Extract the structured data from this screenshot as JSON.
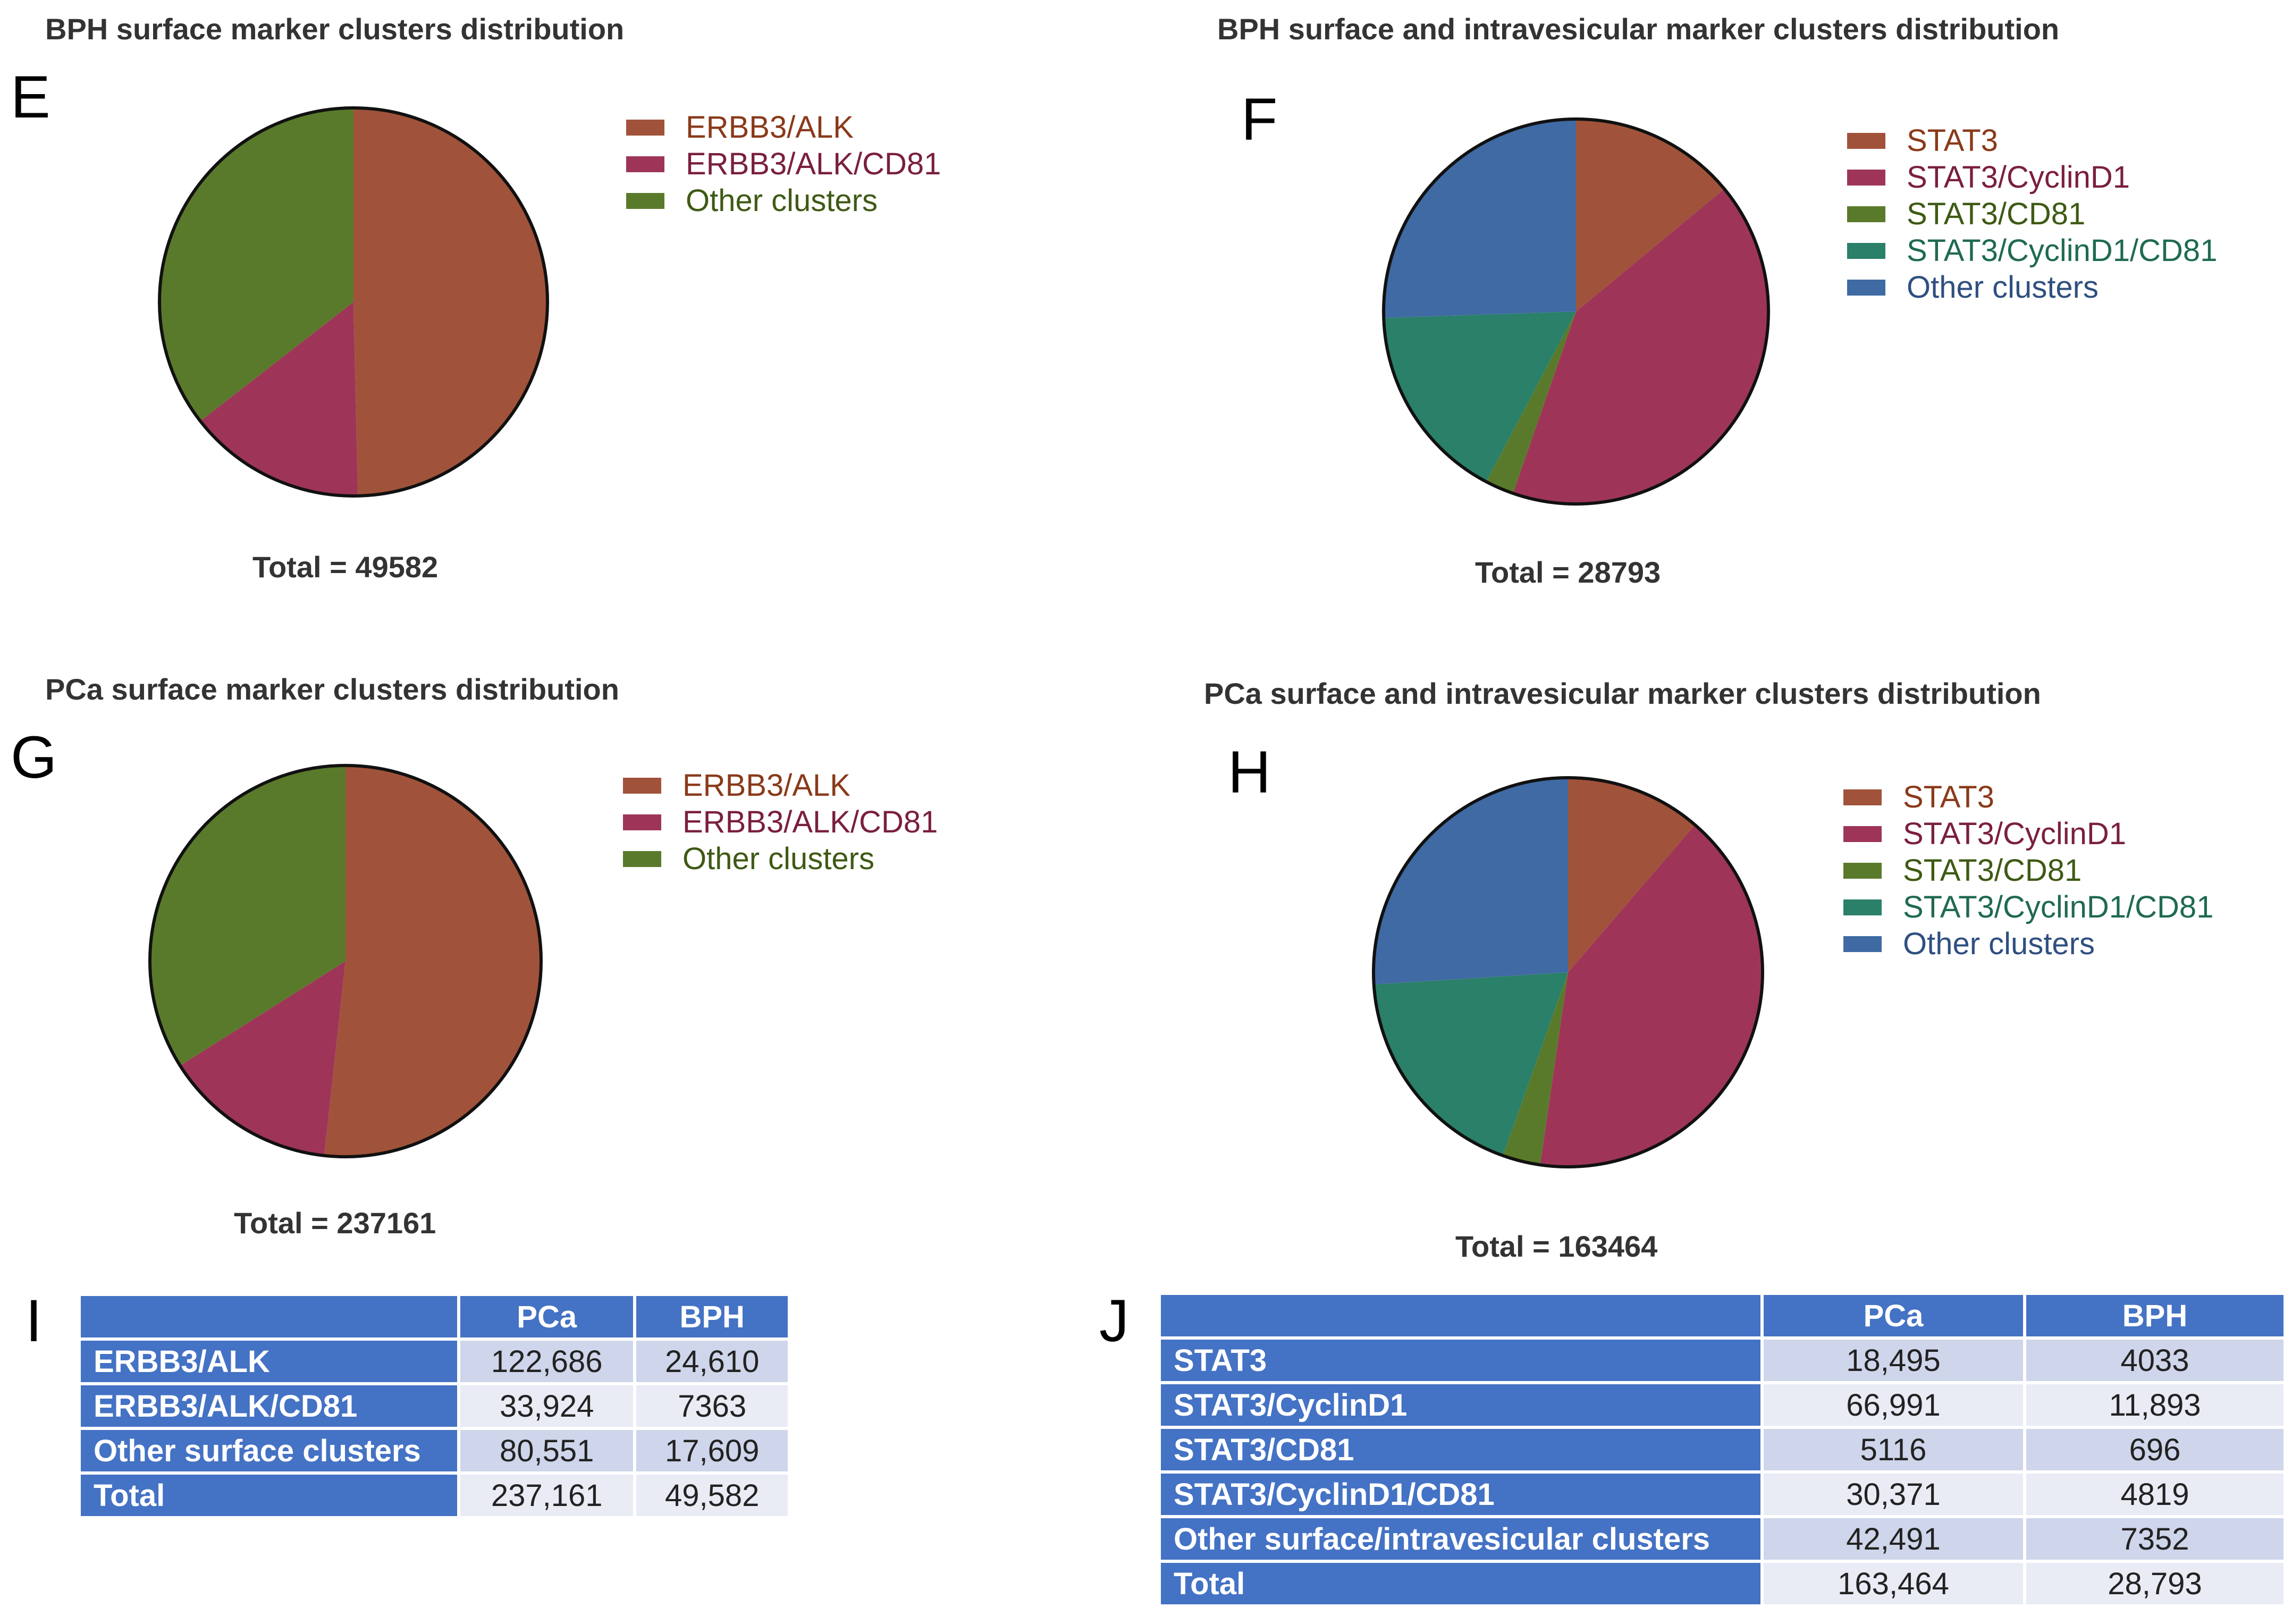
{
  "colors": {
    "brown": "#a0533a",
    "crimson": "#9e3558",
    "olive": "#5a7a2b",
    "teal": "#2a8068",
    "steel": "#3f6aa3",
    "table_header": "#4472c4"
  },
  "chart_data": [
    {
      "type": "pie",
      "letter": "E",
      "title": "BPH surface marker clusters distribution",
      "total_label": "Total = 49582",
      "categories": [
        "ERBB3/ALK",
        "ERBB3/ALK/CD81",
        "Other clusters"
      ],
      "values": [
        24610,
        7363,
        17609
      ],
      "colors": [
        "#a0533a",
        "#9e3558",
        "#5a7a2b"
      ],
      "label_colors": [
        "#8a3a1a",
        "#7a1f3f",
        "#3f5a14"
      ]
    },
    {
      "type": "pie",
      "letter": "F",
      "title": "BPH surface and intravesicular marker clusters distribution",
      "total_label": "Total = 28793",
      "categories": [
        "STAT3",
        "STAT3/CyclinD1",
        "STAT3/CD81",
        "STAT3/CyclinD1/CD81",
        "Other clusters"
      ],
      "values": [
        4033,
        11893,
        696,
        4819,
        7352
      ],
      "colors": [
        "#a0533a",
        "#9e3558",
        "#5a7a2b",
        "#2a8068",
        "#3f6aa3"
      ],
      "label_colors": [
        "#8a3a1a",
        "#7a1f3f",
        "#3f5a14",
        "#1f6a50",
        "#2f4f80"
      ]
    },
    {
      "type": "pie",
      "letter": "G",
      "title": "PCa surface marker clusters distribution",
      "total_label": "Total = 237161",
      "categories": [
        "ERBB3/ALK",
        "ERBB3/ALK/CD81",
        "Other clusters"
      ],
      "values": [
        122686,
        33924,
        80551
      ],
      "colors": [
        "#a0533a",
        "#9e3558",
        "#5a7a2b"
      ],
      "label_colors": [
        "#8a3a1a",
        "#7a1f3f",
        "#3f5a14"
      ]
    },
    {
      "type": "pie",
      "letter": "H",
      "title": "PCa surface and intravesicular marker clusters distribution",
      "total_label": "Total = 163464",
      "categories": [
        "STAT3",
        "STAT3/CyclinD1",
        "STAT3/CD81",
        "STAT3/CyclinD1/CD81",
        "Other clusters"
      ],
      "values": [
        18495,
        66991,
        5116,
        30371,
        42491
      ],
      "colors": [
        "#a0533a",
        "#9e3558",
        "#5a7a2b",
        "#2a8068",
        "#3f6aa3"
      ],
      "label_colors": [
        "#8a3a1a",
        "#7a1f3f",
        "#3f5a14",
        "#1f6a50",
        "#2f4f80"
      ]
    },
    {
      "type": "table",
      "letter": "I",
      "columns": [
        "",
        "PCa",
        "BPH"
      ],
      "rows": [
        [
          "ERBB3/ALK",
          "122,686",
          "24,610"
        ],
        [
          "ERBB3/ALK/CD81",
          "33,924",
          "7363"
        ],
        [
          "Other surface clusters",
          "80,551",
          "17,609"
        ],
        [
          "Total",
          "237,161",
          "49,582"
        ]
      ]
    },
    {
      "type": "table",
      "letter": "J",
      "columns": [
        "",
        "PCa",
        "BPH"
      ],
      "rows": [
        [
          "STAT3",
          "18,495",
          "4033"
        ],
        [
          "STAT3/CyclinD1",
          "66,991",
          "11,893"
        ],
        [
          "STAT3/CD81",
          "5116",
          "696"
        ],
        [
          "STAT3/CyclinD1/CD81",
          "30,371",
          "4819"
        ],
        [
          "Other surface/intravesicular clusters",
          "42,491",
          "7352"
        ],
        [
          "Total",
          "163,464",
          "28,793"
        ]
      ]
    }
  ]
}
